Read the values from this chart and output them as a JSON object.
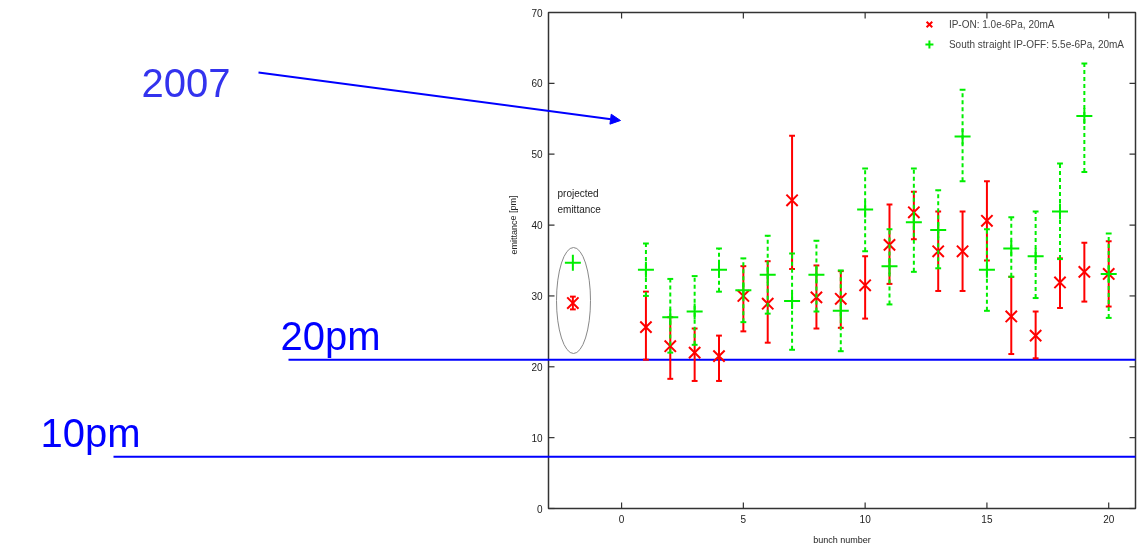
{
  "chart_data": {
    "type": "scatter",
    "xlabel": "bunch number",
    "ylabel": "emittance [pm]",
    "x": [
      -2,
      1,
      2,
      3,
      4,
      5,
      6,
      7,
      8,
      9,
      10,
      11,
      12,
      13,
      14,
      15,
      16,
      17,
      18,
      19,
      20
    ],
    "series": [
      {
        "name": "IP-ON: 1.0e-6Pa, 20mA",
        "color": "#ff0000",
        "marker": "cross",
        "line_style": "solid",
        "values": [
          29.0,
          25.6,
          22.9,
          22.0,
          21.5,
          30.0,
          28.9,
          43.5,
          29.8,
          29.6,
          31.5,
          37.2,
          41.8,
          36.3,
          36.3,
          40.6,
          27.1,
          24.4,
          31.9,
          33.4,
          33.1
        ],
        "errors": [
          [
            28.1,
            29.9
          ],
          [
            21.0,
            30.6
          ],
          [
            18.3,
            27.0
          ],
          [
            18.0,
            25.4
          ],
          [
            18.0,
            24.4
          ],
          [
            25.0,
            34.2
          ],
          [
            23.4,
            34.9
          ],
          [
            33.8,
            52.6
          ],
          [
            25.4,
            34.3
          ],
          [
            25.5,
            33.5
          ],
          [
            26.8,
            35.6
          ],
          [
            31.7,
            42.9
          ],
          [
            38.0,
            44.7
          ],
          [
            30.7,
            41.9
          ],
          [
            30.7,
            41.9
          ],
          [
            35.0,
            46.2
          ],
          [
            21.8,
            32.7
          ],
          [
            21.2,
            27.8
          ],
          [
            28.3,
            35.3
          ],
          [
            29.2,
            37.5
          ],
          [
            28.5,
            37.7
          ]
        ]
      },
      {
        "name": "South straight IP-OFF: 5.5e-6Pa, 20mA",
        "color": "#00ee00",
        "marker": "cross",
        "line_style": "dashed",
        "values": [
          34.7,
          33.7,
          27.0,
          27.8,
          33.7,
          30.8,
          33.0,
          29.3,
          33.0,
          27.9,
          42.2,
          34.2,
          40.4,
          39.3,
          52.5,
          33.7,
          36.7,
          35.6,
          41.9,
          55.4,
          33.1
        ],
        "errors": [
          null,
          [
            30.0,
            37.4
          ],
          [
            22.0,
            32.4
          ],
          [
            23.1,
            32.8
          ],
          [
            30.6,
            36.7
          ],
          [
            26.3,
            35.3
          ],
          [
            27.5,
            38.5
          ],
          [
            22.4,
            36.0
          ],
          [
            27.8,
            37.8
          ],
          [
            22.2,
            33.6
          ],
          [
            36.3,
            48.0
          ],
          [
            28.8,
            39.4
          ],
          [
            33.4,
            48.0
          ],
          [
            33.9,
            44.9
          ],
          [
            46.2,
            59.1
          ],
          [
            27.9,
            39.4
          ],
          [
            32.7,
            41.1
          ],
          [
            29.7,
            41.9
          ],
          [
            35.2,
            48.7
          ],
          [
            47.5,
            62.8
          ],
          [
            26.9,
            38.8
          ]
        ]
      }
    ],
    "xlim": [
      -3,
      21.1
    ],
    "xticks": [
      0,
      5,
      10,
      15,
      20
    ],
    "ylim": [
      0,
      70
    ],
    "yticks": [
      0,
      10,
      20,
      30,
      40,
      50,
      60,
      70
    ],
    "ref_lines": [
      {
        "axis": "y",
        "value": 21.0,
        "label": "20pm",
        "color": "#0000ff"
      },
      {
        "axis": "y",
        "value": 7.3,
        "label": "10pm",
        "color": "#0000ff"
      }
    ],
    "annotations": [
      "projected emittance",
      "2007"
    ],
    "legend": "top right",
    "grid": false
  }
}
